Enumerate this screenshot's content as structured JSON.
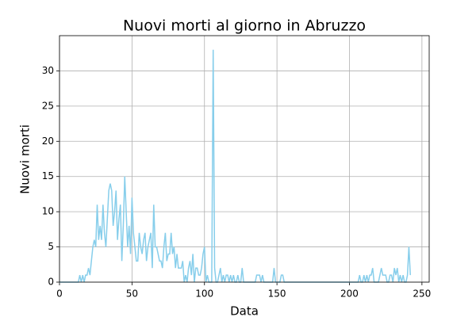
{
  "chart_data": {
    "type": "line",
    "title": "Nuovi morti al giorno in Abruzzo",
    "x_label": "Data",
    "y_label": "Nuovi morti",
    "x": [
      0,
      1,
      2,
      3,
      4,
      5,
      6,
      7,
      8,
      9,
      10,
      11,
      12,
      13,
      14,
      15,
      16,
      17,
      18,
      19,
      20,
      21,
      22,
      23,
      24,
      25,
      26,
      27,
      28,
      29,
      30,
      31,
      32,
      33,
      34,
      35,
      36,
      37,
      38,
      39,
      40,
      41,
      42,
      43,
      44,
      45,
      46,
      47,
      48,
      49,
      50,
      51,
      52,
      53,
      54,
      55,
      56,
      57,
      58,
      59,
      60,
      61,
      62,
      63,
      64,
      65,
      66,
      67,
      68,
      69,
      70,
      71,
      72,
      73,
      74,
      75,
      76,
      77,
      78,
      79,
      80,
      81,
      82,
      83,
      84,
      85,
      86,
      87,
      88,
      89,
      90,
      91,
      92,
      93,
      94,
      95,
      96,
      97,
      98,
      99,
      100,
      101,
      102,
      103,
      104,
      105,
      106,
      107,
      108,
      109,
      110,
      111,
      112,
      113,
      114,
      115,
      116,
      117,
      118,
      119,
      120,
      121,
      122,
      123,
      124,
      125,
      126,
      127,
      128,
      129,
      130,
      131,
      132,
      133,
      134,
      135,
      136,
      137,
      138,
      139,
      140,
      141,
      142,
      143,
      144,
      145,
      146,
      147,
      148,
      149,
      150,
      151,
      152,
      153,
      154,
      155,
      156,
      157,
      158,
      159,
      160,
      161,
      162,
      163,
      164,
      165,
      166,
      167,
      168,
      169,
      170,
      171,
      172,
      173,
      174,
      175,
      176,
      177,
      178,
      179,
      180,
      181,
      182,
      183,
      184,
      185,
      186,
      187,
      188,
      189,
      190,
      191,
      192,
      193,
      194,
      195,
      196,
      197,
      198,
      199,
      200,
      201,
      202,
      203,
      204,
      205,
      206,
      207,
      208,
      209,
      210,
      211,
      212,
      213,
      214,
      215,
      216,
      217,
      218,
      219,
      220,
      221,
      222,
      223,
      224,
      225,
      226,
      227,
      228,
      229,
      230,
      231,
      232,
      233,
      234,
      235,
      236,
      237,
      238,
      239,
      240,
      241,
      242
    ],
    "series": [
      {
        "name": "Nuovi morti",
        "color": "#87ceeb",
        "values": [
          0,
          0,
          0,
          0,
          0,
          0,
          0,
          0,
          0,
          0,
          0,
          0,
          0,
          0,
          1,
          0,
          1,
          0,
          1,
          1,
          2,
          1,
          3,
          5,
          6,
          5,
          11,
          6,
          8,
          6,
          11,
          7,
          5,
          9,
          13,
          14,
          13,
          8,
          10,
          13,
          6,
          9,
          11,
          3,
          8,
          15,
          10,
          5,
          8,
          4,
          12,
          7,
          5,
          3,
          3,
          7,
          5,
          4,
          6,
          7,
          3,
          5,
          6,
          7,
          2,
          11,
          5,
          5,
          4,
          3,
          3,
          2,
          5,
          7,
          3,
          4,
          4,
          7,
          4,
          5,
          2,
          4,
          2,
          2,
          2,
          3,
          0,
          1,
          0,
          2,
          3,
          1,
          4,
          0,
          2,
          2,
          1,
          1,
          2,
          4,
          5,
          0,
          1,
          0,
          0,
          0,
          33,
          2,
          0,
          0,
          1,
          2,
          0,
          1,
          0,
          1,
          1,
          0,
          1,
          0,
          1,
          0,
          0,
          1,
          0,
          0,
          2,
          0,
          0,
          0,
          0,
          0,
          0,
          0,
          0,
          0,
          1,
          1,
          1,
          0,
          1,
          0,
          0,
          0,
          0,
          0,
          0,
          0,
          2,
          0,
          0,
          0,
          0,
          1,
          1,
          0,
          0,
          0,
          0,
          0,
          0,
          0,
          0,
          0,
          0,
          0,
          0,
          0,
          0,
          0,
          0,
          0,
          0,
          0,
          0,
          0,
          0,
          0,
          0,
          0,
          0,
          0,
          0,
          0,
          0,
          0,
          0,
          0,
          0,
          0,
          0,
          0,
          0,
          0,
          0,
          0,
          0,
          0,
          0,
          0,
          0,
          0,
          0,
          0,
          0,
          0,
          0,
          1,
          0,
          0,
          1,
          0,
          1,
          0,
          1,
          1,
          2,
          0,
          0,
          0,
          0,
          1,
          2,
          1,
          1,
          1,
          0,
          0,
          1,
          1,
          0,
          2,
          1,
          2,
          0,
          1,
          0,
          1,
          0,
          0,
          1,
          5,
          1
        ]
      }
    ],
    "xlim": [
      0,
      255
    ],
    "ylim": [
      0,
      35
    ],
    "xticks": [
      0,
      50,
      100,
      150,
      200,
      250
    ],
    "yticks": [
      0,
      5,
      10,
      15,
      20,
      25,
      30
    ],
    "grid": true
  }
}
